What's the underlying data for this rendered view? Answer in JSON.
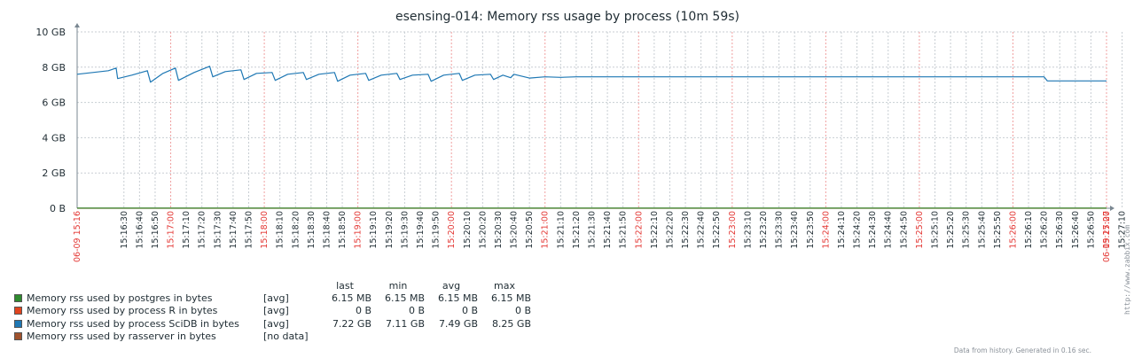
{
  "graph_title": "esensing-014: Memory rss usage by process (10m 59s)",
  "chart_data": {
    "type": "line",
    "title": "esensing-014: Memory rss usage by process (10m 59s)",
    "y_unit": "GB",
    "ylim": [
      0,
      10
    ],
    "y_ticks": [
      {
        "value": 10,
        "label": "10 GB"
      },
      {
        "value": 8,
        "label": "8 GB"
      },
      {
        "value": 6,
        "label": "6 GB"
      },
      {
        "value": 4,
        "label": "4 GB"
      },
      {
        "value": 2,
        "label": "2 GB"
      },
      {
        "value": 0,
        "label": "0 B"
      }
    ],
    "x_range": [
      "15:16:00",
      "15:27:00"
    ],
    "x_ticks": [
      {
        "t": "15:16:00",
        "label": "06-09 15:16",
        "major": true
      },
      {
        "t": "15:16:30",
        "label": "15:16:30"
      },
      {
        "t": "15:16:40",
        "label": "15:16:40"
      },
      {
        "t": "15:16:50",
        "label": "15:16:50"
      },
      {
        "t": "15:17:00",
        "label": "15:17:00",
        "major": true
      },
      {
        "t": "15:17:10",
        "label": "15:17:10"
      },
      {
        "t": "15:17:20",
        "label": "15:17:20"
      },
      {
        "t": "15:17:30",
        "label": "15:17:30"
      },
      {
        "t": "15:17:40",
        "label": "15:17:40"
      },
      {
        "t": "15:17:50",
        "label": "15:17:50"
      },
      {
        "t": "15:18:00",
        "label": "15:18:00",
        "major": true
      },
      {
        "t": "15:18:10",
        "label": "15:18:10"
      },
      {
        "t": "15:18:20",
        "label": "15:18:20"
      },
      {
        "t": "15:18:30",
        "label": "15:18:30"
      },
      {
        "t": "15:18:40",
        "label": "15:18:40"
      },
      {
        "t": "15:18:50",
        "label": "15:18:50"
      },
      {
        "t": "15:19:00",
        "label": "15:19:00",
        "major": true
      },
      {
        "t": "15:19:10",
        "label": "15:19:10"
      },
      {
        "t": "15:19:20",
        "label": "15:19:20"
      },
      {
        "t": "15:19:30",
        "label": "15:19:30"
      },
      {
        "t": "15:19:40",
        "label": "15:19:40"
      },
      {
        "t": "15:19:50",
        "label": "15:19:50"
      },
      {
        "t": "15:20:00",
        "label": "15:20:00",
        "major": true
      },
      {
        "t": "15:20:10",
        "label": "15:20:10"
      },
      {
        "t": "15:20:20",
        "label": "15:20:20"
      },
      {
        "t": "15:20:30",
        "label": "15:20:30"
      },
      {
        "t": "15:20:40",
        "label": "15:20:40"
      },
      {
        "t": "15:20:50",
        "label": "15:20:50"
      },
      {
        "t": "15:21:00",
        "label": "15:21:00",
        "major": true
      },
      {
        "t": "15:21:10",
        "label": "15:21:10"
      },
      {
        "t": "15:21:20",
        "label": "15:21:20"
      },
      {
        "t": "15:21:30",
        "label": "15:21:30"
      },
      {
        "t": "15:21:40",
        "label": "15:21:40"
      },
      {
        "t": "15:21:50",
        "label": "15:21:50"
      },
      {
        "t": "15:22:00",
        "label": "15:22:00",
        "major": true
      },
      {
        "t": "15:22:10",
        "label": "15:22:10"
      },
      {
        "t": "15:22:20",
        "label": "15:22:20"
      },
      {
        "t": "15:22:30",
        "label": "15:22:30"
      },
      {
        "t": "15:22:40",
        "label": "15:22:40"
      },
      {
        "t": "15:22:50",
        "label": "15:22:50"
      },
      {
        "t": "15:23:00",
        "label": "15:23:00",
        "major": true
      },
      {
        "t": "15:23:10",
        "label": "15:23:10"
      },
      {
        "t": "15:23:20",
        "label": "15:23:20"
      },
      {
        "t": "15:23:30",
        "label": "15:23:30"
      },
      {
        "t": "15:23:40",
        "label": "15:23:40"
      },
      {
        "t": "15:23:50",
        "label": "15:23:50"
      },
      {
        "t": "15:24:00",
        "label": "15:24:00",
        "major": true
      },
      {
        "t": "15:24:10",
        "label": "15:24:10"
      },
      {
        "t": "15:24:20",
        "label": "15:24:20"
      },
      {
        "t": "15:24:30",
        "label": "15:24:30"
      },
      {
        "t": "15:24:40",
        "label": "15:24:40"
      },
      {
        "t": "15:24:50",
        "label": "15:24:50"
      },
      {
        "t": "15:25:00",
        "label": "15:25:00",
        "major": true
      },
      {
        "t": "15:25:10",
        "label": "15:25:10"
      },
      {
        "t": "15:25:20",
        "label": "15:25:20"
      },
      {
        "t": "15:25:30",
        "label": "15:25:30"
      },
      {
        "t": "15:25:40",
        "label": "15:25:40"
      },
      {
        "t": "15:25:50",
        "label": "15:25:50"
      },
      {
        "t": "15:26:00",
        "label": "15:26:00",
        "major": true
      },
      {
        "t": "15:26:10",
        "label": "15:26:10"
      },
      {
        "t": "15:26:20",
        "label": "15:26:20"
      },
      {
        "t": "15:26:30",
        "label": "15:26:30"
      },
      {
        "t": "15:26:40",
        "label": "15:26:40"
      },
      {
        "t": "15:26:50",
        "label": "15:26:50"
      },
      {
        "t": "15:27:00",
        "label": "15:27:00",
        "major": true
      },
      {
        "t": "15:27:10",
        "label": "15:27:10"
      },
      {
        "t": "15:27:00",
        "label": "06-09 15:27",
        "major": true
      }
    ],
    "grid": true,
    "series": [
      {
        "name": "Memory rss used by process SciDB in bytes",
        "color": "#1f78b4",
        "x": [
          "15:16:00",
          "15:16:10",
          "15:16:20",
          "15:16:25",
          "15:16:26",
          "15:16:35",
          "15:16:45",
          "15:16:47",
          "15:16:55",
          "15:17:03",
          "15:17:05",
          "15:17:15",
          "15:17:25",
          "15:17:27",
          "15:17:35",
          "15:17:45",
          "15:17:47",
          "15:17:55",
          "15:18:05",
          "15:18:07",
          "15:18:15",
          "15:18:25",
          "15:18:27",
          "15:18:35",
          "15:18:45",
          "15:18:47",
          "15:18:55",
          "15:19:05",
          "15:19:07",
          "15:19:15",
          "15:19:25",
          "15:19:27",
          "15:19:35",
          "15:19:45",
          "15:19:47",
          "15:19:55",
          "15:20:05",
          "15:20:07",
          "15:20:15",
          "15:20:25",
          "15:20:27",
          "15:20:33",
          "15:20:38",
          "15:20:40",
          "15:20:50",
          "15:21:00",
          "15:21:10",
          "15:21:20",
          "15:26:20",
          "15:26:22",
          "15:27:00"
        ],
        "y": [
          7.6,
          7.7,
          7.8,
          7.95,
          7.35,
          7.55,
          7.8,
          7.15,
          7.65,
          7.95,
          7.25,
          7.7,
          8.05,
          7.45,
          7.75,
          7.85,
          7.3,
          7.65,
          7.7,
          7.25,
          7.6,
          7.7,
          7.3,
          7.6,
          7.7,
          7.2,
          7.55,
          7.65,
          7.25,
          7.55,
          7.65,
          7.3,
          7.55,
          7.6,
          7.2,
          7.55,
          7.65,
          7.25,
          7.55,
          7.6,
          7.3,
          7.55,
          7.4,
          7.6,
          7.38,
          7.45,
          7.42,
          7.45,
          7.45,
          7.22,
          7.22
        ]
      },
      {
        "name": "Memory rss used by process R in bytes",
        "color": "#e0301e",
        "x": [
          "15:16:00",
          "15:27:00"
        ],
        "y": [
          0,
          0
        ]
      },
      {
        "name": "Memory rss used by postgres in bytes",
        "color": "#2e8b2e",
        "x": [
          "15:16:00",
          "15:27:00"
        ],
        "y": [
          0.006,
          0.006
        ]
      }
    ]
  },
  "legend": {
    "headers": [
      "last",
      "min",
      "avg",
      "max"
    ],
    "items": [
      {
        "name": "Memory rss used by postgres in bytes",
        "color": "#2e8b2e",
        "func": "[avg]",
        "last": "6.15 MB",
        "min": "6.15 MB",
        "avg": "6.15 MB",
        "max": "6.15 MB"
      },
      {
        "name": "Memory rss used by process R in bytes",
        "color": "#e0441e",
        "func": "[avg]",
        "last": "0 B",
        "min": "0 B",
        "avg": "0 B",
        "max": "0 B"
      },
      {
        "name": "Memory rss used by process SciDB in bytes",
        "color": "#1f78b4",
        "func": "[avg]",
        "last": "7.22 GB",
        "min": "7.11 GB",
        "avg": "7.49 GB",
        "max": "8.25 GB"
      },
      {
        "name": "Memory rss used by rasserver in bytes",
        "color": "#a0522d",
        "func": "[no data]",
        "last": "",
        "min": "",
        "avg": "",
        "max": ""
      }
    ]
  },
  "footer": "Data from history. Generated in 0.16 sec.",
  "side_label": "http://www.zabbix.com"
}
